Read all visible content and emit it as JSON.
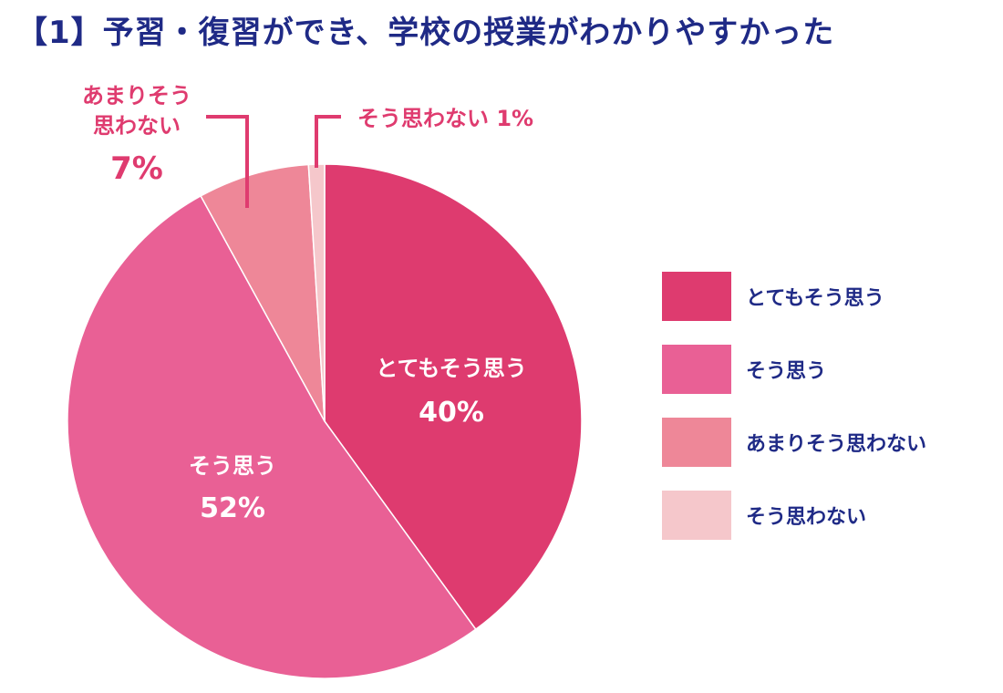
{
  "title": {
    "bracket": "【1】",
    "text": "予習・復習ができ、学校の授業がわかりやすかった"
  },
  "colors": {
    "title": "#1f2a86",
    "legend_text": "#1f2a86",
    "callout_text": "#df3b6f",
    "callout_line": "#df3b6f",
    "inside_label": "#ffffff",
    "slice_divider": "#ffffff"
  },
  "chart_data": {
    "type": "pie",
    "title": "【1】予習・復習ができ、学校の授業がわかりやすかった",
    "start": "12 o'clock, clockwise",
    "grid": false,
    "legend_position": "right",
    "slices": [
      {
        "id": "totemo",
        "label": "とてもそう思う",
        "value": 40,
        "display_value": "40%",
        "color": "#de3b6f",
        "label_style": "inside"
      },
      {
        "id": "sou",
        "label": "そう思う",
        "value": 52,
        "display_value": "52%",
        "color": "#e96095",
        "label_style": "inside"
      },
      {
        "id": "amari",
        "label": "あまりそう思わない",
        "label_lines": [
          "あまりそう",
          "思わない"
        ],
        "value": 7,
        "display_value": "7%",
        "color": "#ee8798",
        "label_style": "callout"
      },
      {
        "id": "sounai",
        "label": "そう思わない",
        "value": 1,
        "display_value": "1%",
        "callout_text": "そう思わない 1%",
        "color": "#f5c7cb",
        "label_style": "callout"
      }
    ]
  },
  "legend": {
    "items": [
      {
        "label": "とてもそう思う",
        "color": "#de3b6f"
      },
      {
        "label": "そう思う",
        "color": "#e96095"
      },
      {
        "label": "あまりそう思わない",
        "color": "#ee8798"
      },
      {
        "label": "そう思わない",
        "color": "#f5c7cb"
      }
    ]
  }
}
